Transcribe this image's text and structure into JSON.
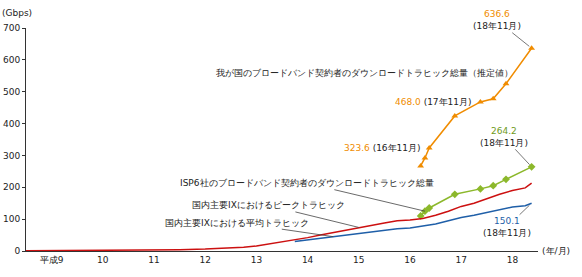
{
  "chart_data": {
    "type": "line",
    "xlabel": "(年/月)",
    "ylabel": "(Gbps)",
    "xlim": [
      9,
      19
    ],
    "xticks": [
      {
        "value": 9.5,
        "label": "平成9"
      },
      {
        "value": 10.5,
        "label": "10"
      },
      {
        "value": 11.5,
        "label": "11"
      },
      {
        "value": 12.5,
        "label": "12"
      },
      {
        "value": 13.5,
        "label": "13"
      },
      {
        "value": 14.5,
        "label": "14"
      },
      {
        "value": 15.5,
        "label": "15"
      },
      {
        "value": 16.5,
        "label": "16"
      },
      {
        "value": 17.5,
        "label": "17"
      },
      {
        "value": 18.5,
        "label": "18"
      }
    ],
    "ylim": [
      0,
      700
    ],
    "yticks": [
      0,
      100,
      200,
      300,
      400,
      500,
      600,
      700
    ],
    "grid": false,
    "series": [
      {
        "name": "我が国のブロードバンド契約者のダウンロードトラヒック総量（推定値）",
        "color": "#f08c00",
        "marker": "triangle",
        "x": [
          16.708,
          16.792,
          16.875,
          17.375,
          17.875,
          18.125,
          18.375,
          18.875
        ],
        "values": [
          267,
          292,
          323.6,
          424,
          468.0,
          478,
          525,
          636.6
        ]
      },
      {
        "name": "ISP6社のブロードバンド契約者のダウンロードトラヒック総量",
        "color": "#8cb82b",
        "marker": "diamond",
        "x": [
          16.708,
          16.792,
          16.875,
          17.375,
          17.875,
          18.125,
          18.375,
          18.875
        ],
        "values": [
          110,
          125,
          135,
          178,
          195,
          205,
          225,
          264.2
        ]
      },
      {
        "name": "国内主要IXにおけるピークトラヒック",
        "color": "#cc1010",
        "x": [
          9.0,
          9.5,
          10.0,
          10.5,
          11.0,
          11.5,
          12.0,
          12.5,
          13.0,
          13.25,
          13.5,
          13.75,
          14.0,
          14.25,
          14.5,
          14.75,
          15.0,
          15.25,
          15.5,
          15.75,
          16.0,
          16.25,
          16.5,
          16.75,
          17.0,
          17.25,
          17.5,
          17.75,
          18.0,
          18.25,
          18.5,
          18.75,
          18.875
        ],
        "values": [
          0.5,
          0.8,
          1,
          1.5,
          2,
          3,
          4,
          6,
          9,
          12,
          16,
          22,
          28,
          34,
          42,
          50,
          58,
          66,
          74,
          82,
          88,
          95,
          97,
          102,
          112,
          125,
          140,
          150,
          165,
          178,
          190,
          198,
          213
        ]
      },
      {
        "name": "国内主要IXにおける平均トラヒック",
        "color": "#1f5fa8",
        "x": [
          14.25,
          14.5,
          14.75,
          15.0,
          15.25,
          15.5,
          15.75,
          16.0,
          16.25,
          16.5,
          16.75,
          17.0,
          17.25,
          17.5,
          17.75,
          18.0,
          18.25,
          18.5,
          18.75,
          18.875
        ],
        "values": [
          30,
          35,
          40,
          45,
          50,
          55,
          60,
          65,
          70,
          72,
          78,
          85,
          95,
          105,
          112,
          120,
          130,
          138,
          142,
          150.1
        ]
      }
    ],
    "annotations": [
      {
        "text": "636.6",
        "subtext": "(18年11月)",
        "x": 18.875,
        "y": 636.6,
        "color": "#f08c00"
      },
      {
        "text": "468.0",
        "subtext": "(17年11月)",
        "x": 17.875,
        "y": 468.0,
        "color": "#f08c00"
      },
      {
        "text": "323.6",
        "subtext": "(16年11月)",
        "x": 16.875,
        "y": 323.6,
        "color": "#f08c00"
      },
      {
        "text": "264.2",
        "subtext": "(18年11月)",
        "x": 18.875,
        "y": 264.2,
        "color": "#6f9a1a"
      },
      {
        "text": "150.1",
        "subtext": "(18年11月)",
        "x": 18.875,
        "y": 150.1,
        "color": "#1f5fa8"
      }
    ]
  }
}
